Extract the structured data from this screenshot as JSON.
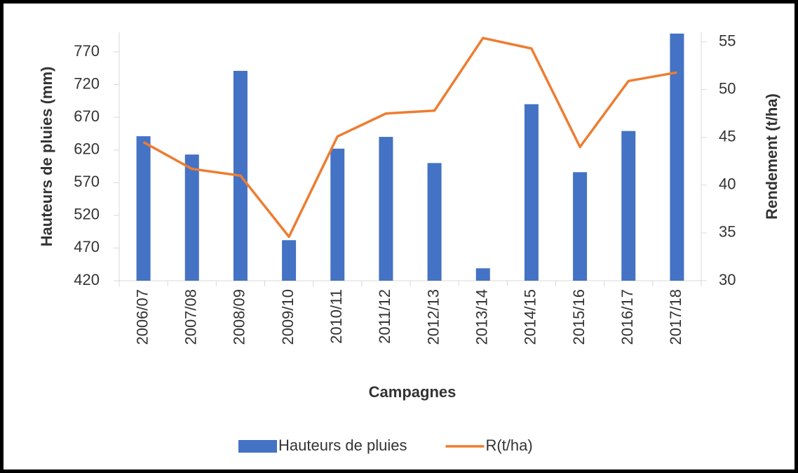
{
  "chart_data": {
    "type": "bar_line",
    "x_label": "Campagnes",
    "y_label": "Hauteurs de pluies (mm)",
    "y2_label": "Rendement (t/ha)",
    "categories": [
      "2006/07",
      "2007/08",
      "2008/09",
      "2009/10",
      "2010/11",
      "2011/12",
      "2012/13",
      "2013/14",
      "2014/15",
      "2015/16",
      "2016/17",
      "2017/18"
    ],
    "series": [
      {
        "name": "Hauteurs de pluies",
        "type": "bar",
        "color": "#4472c4",
        "values": [
          641,
          613,
          741,
          482,
          622,
          640,
          600,
          439,
          690,
          586,
          649,
          798
        ]
      },
      {
        "name": "R(t/ha)",
        "type": "line",
        "axis": "y2",
        "color": "#ed7d31",
        "values": [
          44.5,
          41.7,
          41.0,
          34.6,
          45.1,
          47.5,
          47.8,
          55.4,
          54.3,
          44.0,
          50.9,
          51.8
        ]
      }
    ],
    "ylim": [
      420,
      800
    ],
    "yticks": [
      420,
      470,
      520,
      570,
      620,
      670,
      720,
      770
    ],
    "y2lim": [
      30,
      56
    ],
    "y2ticks": [
      30,
      35,
      40,
      45,
      50,
      55
    ],
    "legend": "bottom"
  }
}
